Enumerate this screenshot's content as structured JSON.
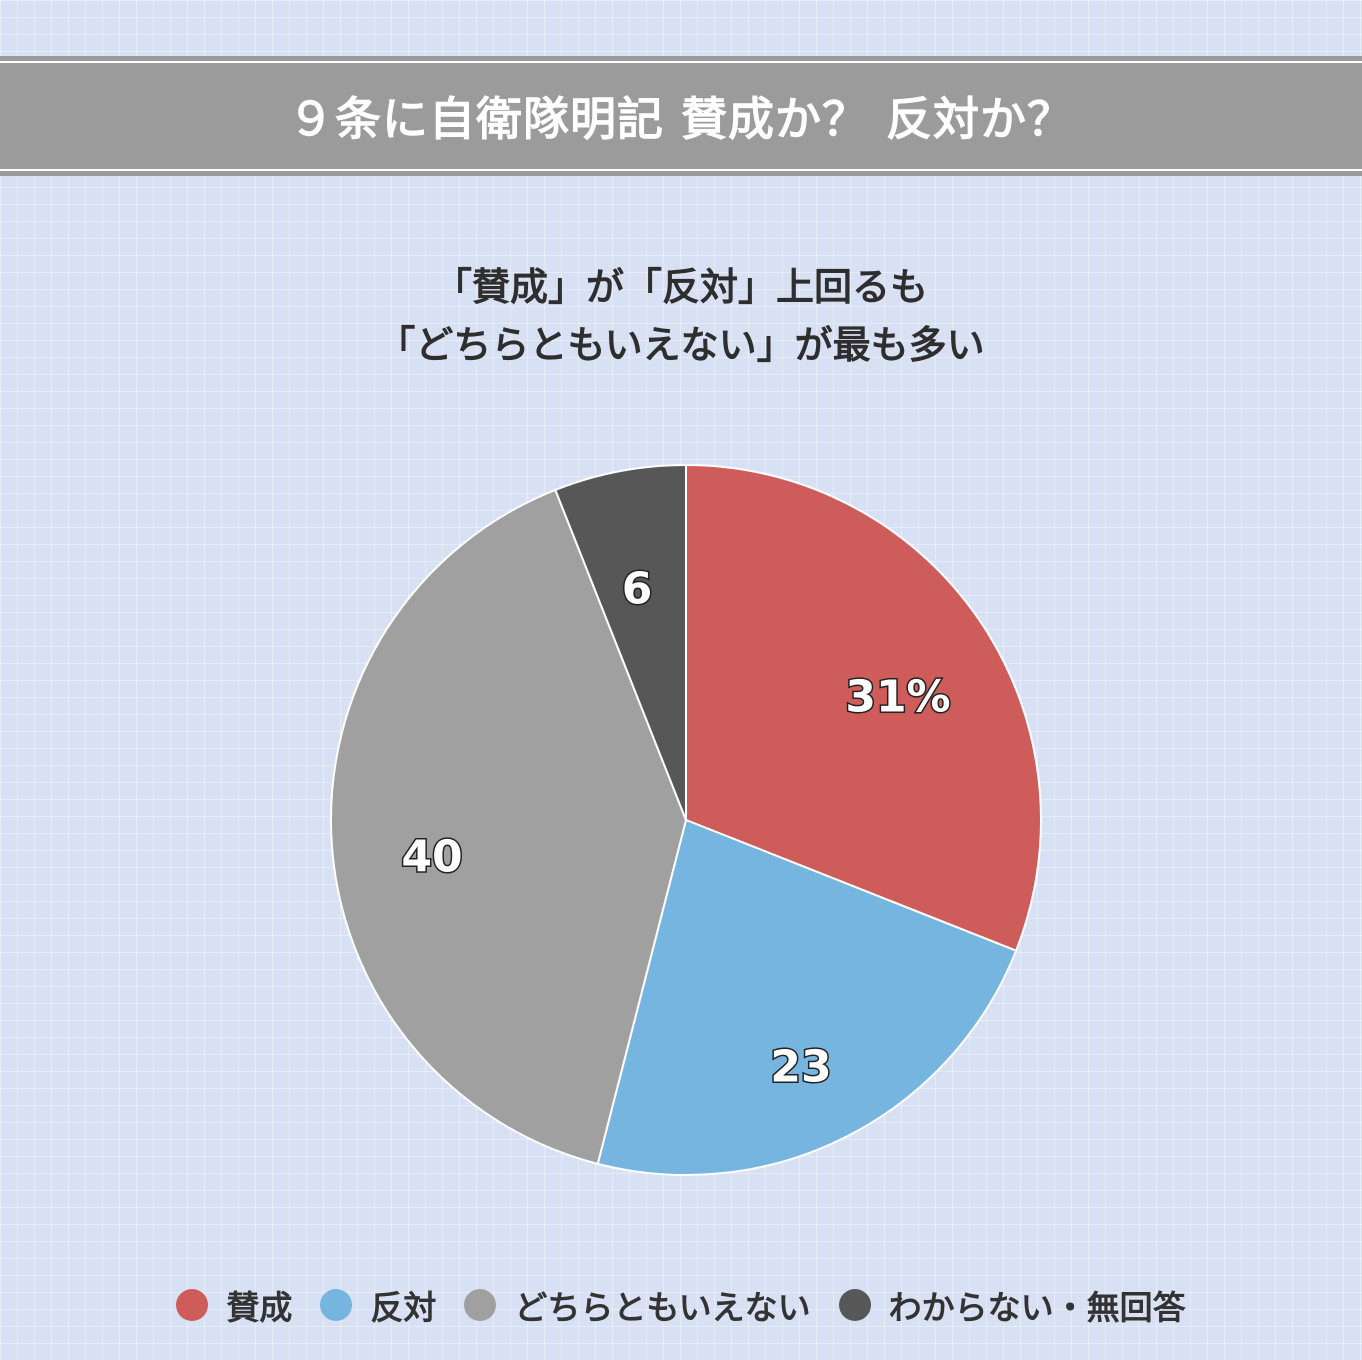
{
  "header": {
    "title": "９条に自衛隊明記 賛成か？ 反対か？"
  },
  "chart_data": {
    "type": "pie",
    "title_lines": [
      "「賛成」が「反対」上回るも",
      "「どちらともいえない」が最も多い"
    ],
    "unit": "%",
    "slices": [
      {
        "name": "賛成",
        "value": 31,
        "label": "31%",
        "color": "#cd5c5b"
      },
      {
        "name": "反対",
        "value": 23,
        "label": "23",
        "color": "#76b5e0"
      },
      {
        "name": "どちらともいえない",
        "value": 40,
        "label": "40",
        "color": "#a0a0a0"
      },
      {
        "name": "わからない・無回答",
        "value": 6,
        "label": "6",
        "color": "#575757"
      }
    ],
    "start_angle_deg": 0,
    "direction": "clockwise",
    "legend_position": "bottom"
  }
}
